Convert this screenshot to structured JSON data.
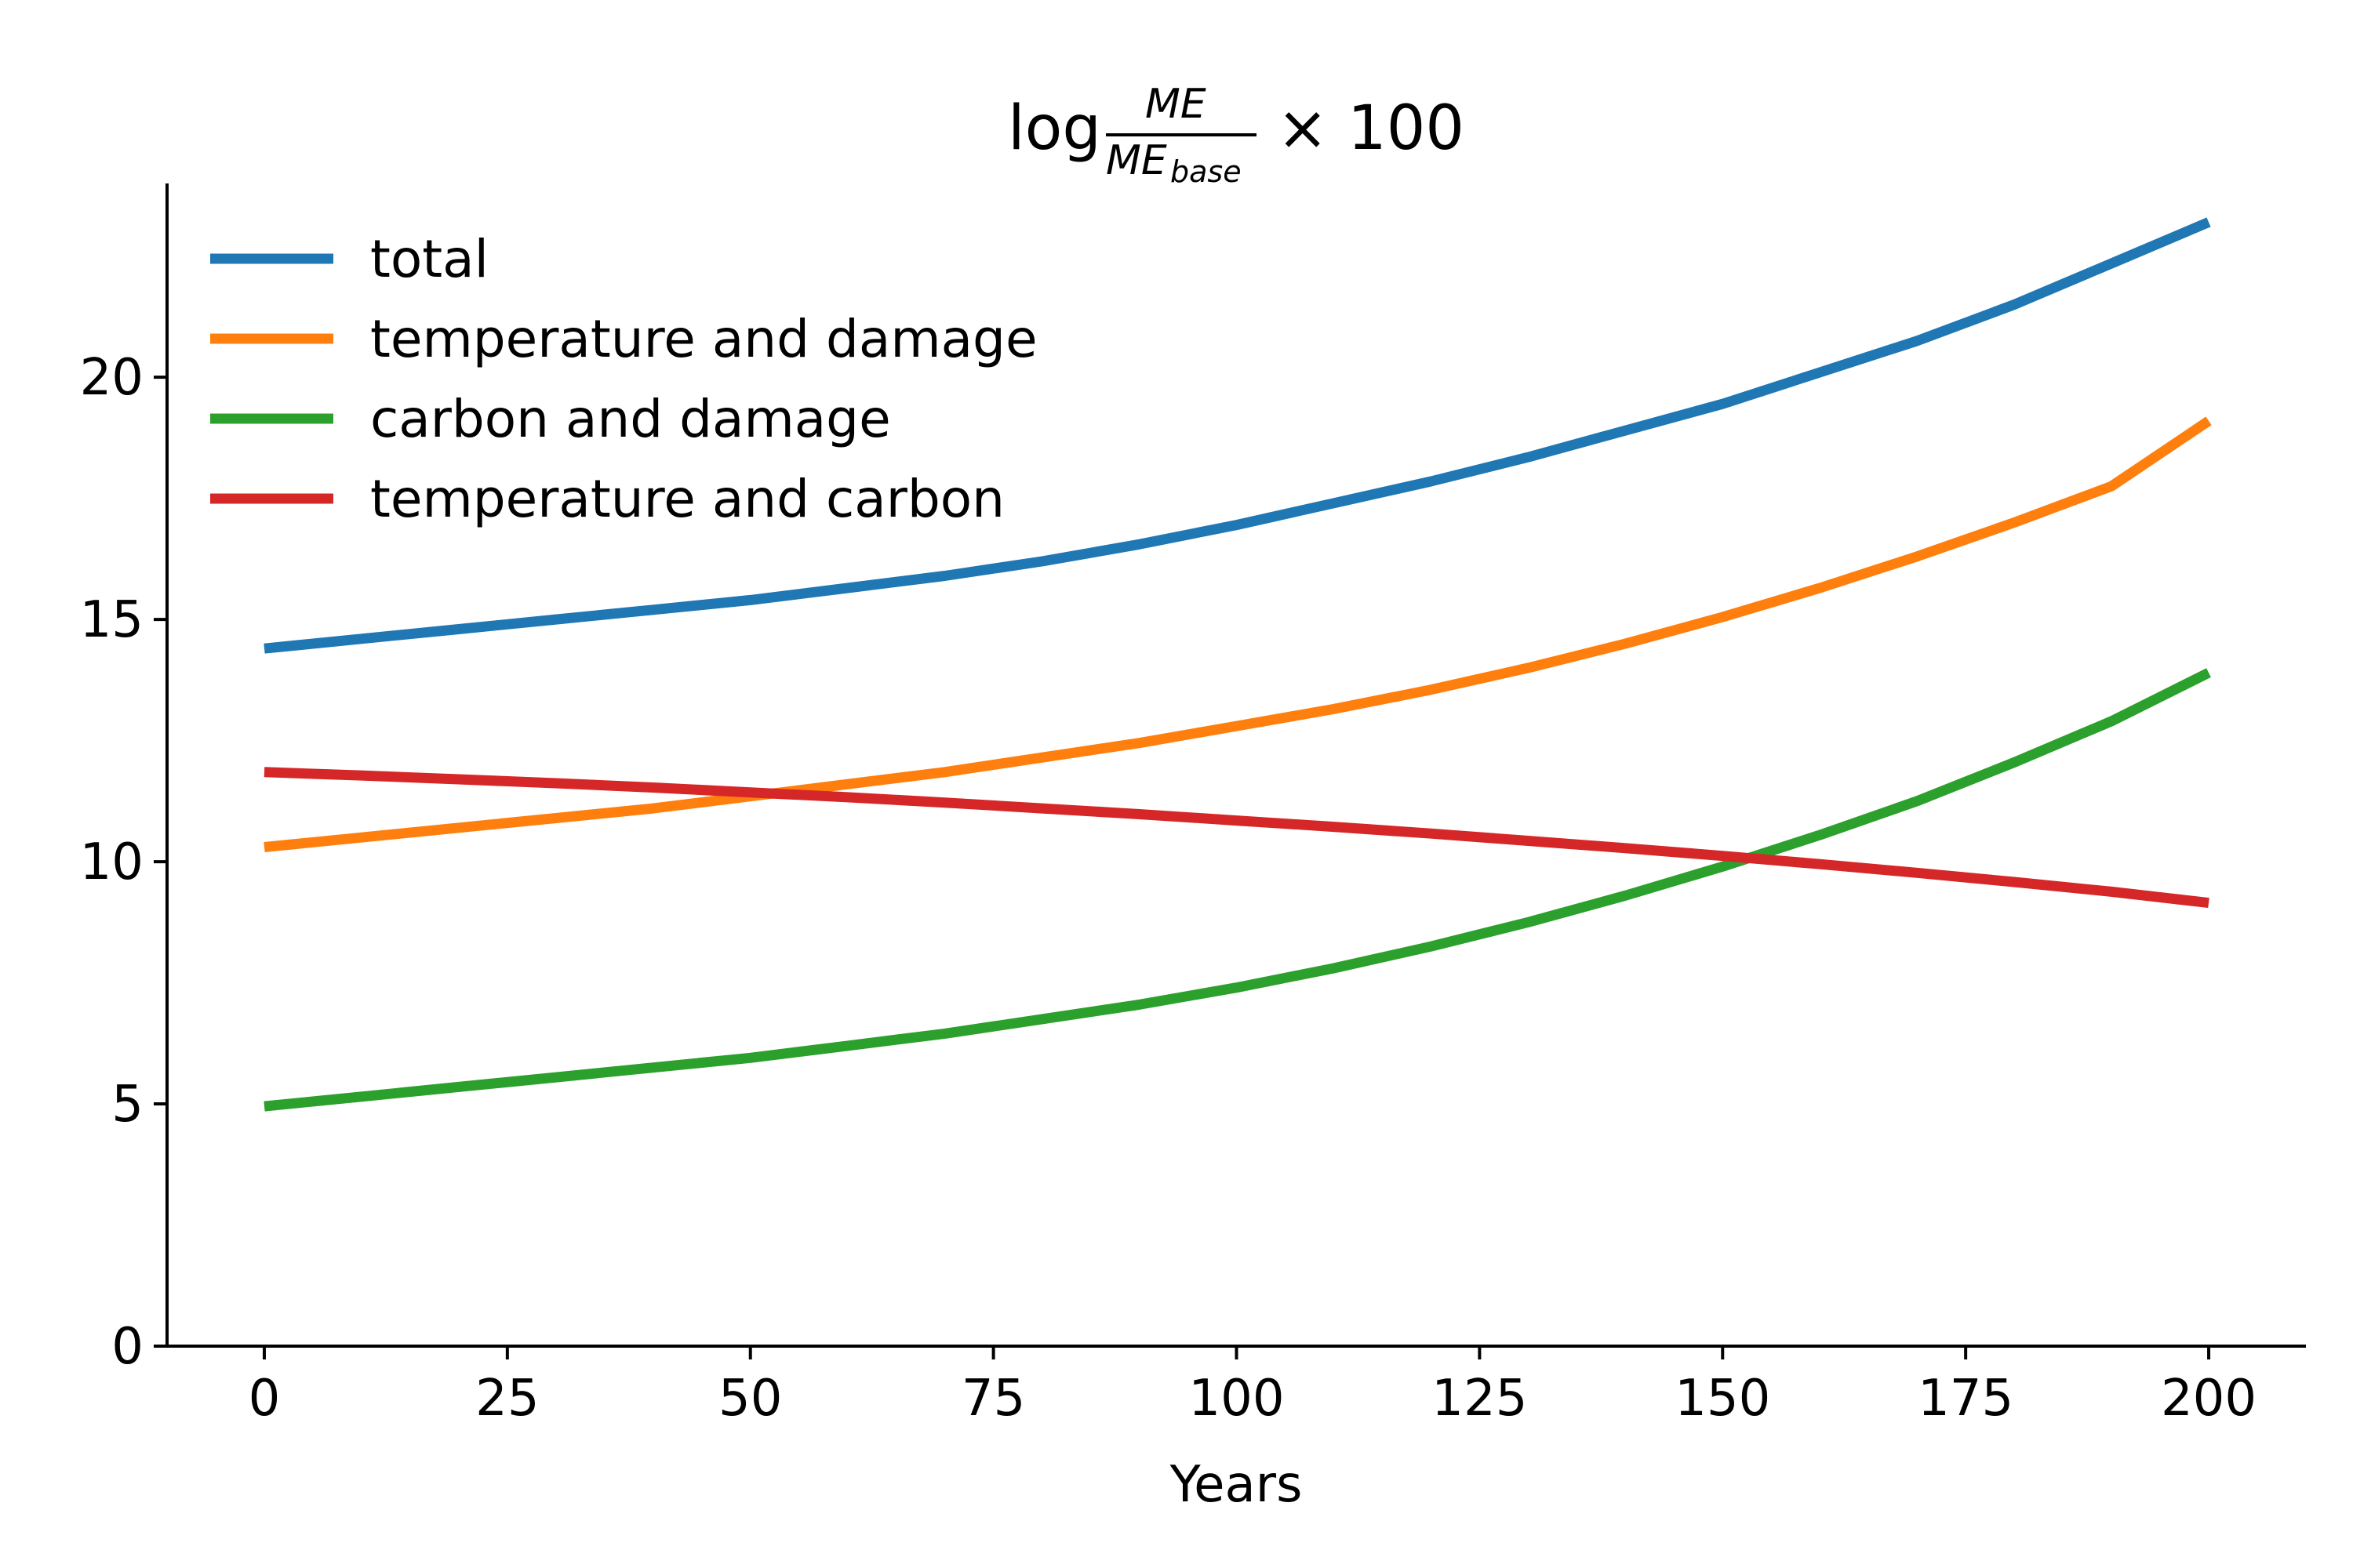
{
  "chart_data": {
    "type": "line",
    "title": {
      "prefix": "log",
      "numerator": "ME",
      "denominator_base": "ME",
      "denominator_subscript": "base",
      "suffix": "× 100"
    },
    "xlabel": "Years",
    "ylabel": "",
    "xlim": [
      -10,
      210
    ],
    "ylim": [
      0,
      24
    ],
    "x_ticks": [
      0,
      25,
      50,
      75,
      100,
      125,
      150,
      175,
      200
    ],
    "y_ticks": [
      0,
      5,
      10,
      15,
      20
    ],
    "grid": false,
    "legend_position": "top-left",
    "x": [
      0,
      10,
      20,
      30,
      40,
      50,
      60,
      70,
      80,
      90,
      100,
      110,
      120,
      130,
      140,
      150,
      160,
      170,
      180,
      190,
      200
    ],
    "series": [
      {
        "name": "total",
        "color": "#1f77b4",
        "values": [
          14.4,
          14.6,
          14.8,
          15.0,
          15.2,
          15.4,
          15.65,
          15.9,
          16.2,
          16.55,
          16.95,
          17.4,
          17.85,
          18.35,
          18.9,
          19.45,
          20.1,
          20.75,
          21.5,
          22.35,
          23.2
        ]
      },
      {
        "name": "temperature and damage",
        "color": "#ff7f0e",
        "values": [
          10.3,
          10.5,
          10.7,
          10.9,
          11.1,
          11.35,
          11.6,
          11.85,
          12.15,
          12.45,
          12.8,
          13.15,
          13.55,
          14.0,
          14.5,
          15.05,
          15.65,
          16.3,
          17.0,
          17.75,
          19.1
        ]
      },
      {
        "name": "carbon and damage",
        "color": "#2ca02c",
        "values": [
          4.95,
          5.15,
          5.35,
          5.55,
          5.75,
          5.95,
          6.2,
          6.45,
          6.75,
          7.05,
          7.4,
          7.8,
          8.25,
          8.75,
          9.3,
          9.9,
          10.55,
          11.25,
          12.05,
          12.9,
          13.9
        ]
      },
      {
        "name": "temperature and carbon",
        "color": "#d62728",
        "values": [
          11.85,
          11.78,
          11.7,
          11.62,
          11.53,
          11.43,
          11.33,
          11.22,
          11.1,
          10.98,
          10.85,
          10.72,
          10.58,
          10.43,
          10.28,
          10.12,
          9.95,
          9.77,
          9.58,
          9.38,
          9.15
        ]
      }
    ]
  }
}
